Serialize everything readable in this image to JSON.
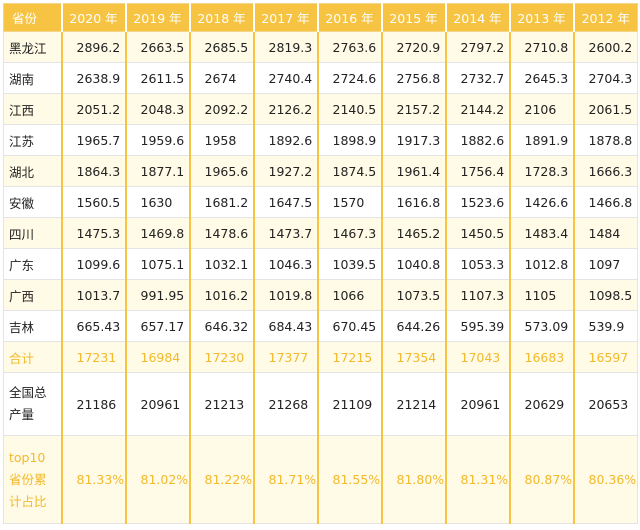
{
  "table": {
    "header_label": "省份",
    "years": [
      "2020 年",
      "2019 年",
      "2018 年",
      "2017 年",
      "2016 年",
      "2015 年",
      "2014 年",
      "2013 年",
      "2012 年"
    ],
    "rows": [
      {
        "province": "黑龙江",
        "values": [
          "2896.2",
          "2663.5",
          "2685.5",
          "2819.3",
          "2763.6",
          "2720.9",
          "2797.2",
          "2710.8",
          "2600.2"
        ]
      },
      {
        "province": "湖南",
        "values": [
          "2638.9",
          "2611.5",
          "2674",
          "2740.4",
          "2724.6",
          "2756.8",
          "2732.7",
          "2645.3",
          "2704.3"
        ]
      },
      {
        "province": "江西",
        "values": [
          "2051.2",
          "2048.3",
          "2092.2",
          "2126.2",
          "2140.5",
          "2157.2",
          "2144.2",
          "2106",
          "2061.5"
        ]
      },
      {
        "province": "江苏",
        "values": [
          "1965.7",
          "1959.6",
          "1958",
          "1892.6",
          "1898.9",
          "1917.3",
          "1882.6",
          "1891.9",
          "1878.8"
        ]
      },
      {
        "province": "湖北",
        "values": [
          "1864.3",
          "1877.1",
          "1965.6",
          "1927.2",
          "1874.5",
          "1961.4",
          "1756.4",
          "1728.3",
          "1666.3"
        ]
      },
      {
        "province": "安徽",
        "values": [
          "1560.5",
          "1630",
          "1681.2",
          "1647.5",
          "1570",
          "1616.8",
          "1523.6",
          "1426.6",
          "1466.8"
        ]
      },
      {
        "province": "四川",
        "values": [
          "1475.3",
          "1469.8",
          "1478.6",
          "1473.7",
          "1467.3",
          "1465.2",
          "1450.5",
          "1483.4",
          "1484"
        ]
      },
      {
        "province": "广东",
        "values": [
          "1099.6",
          "1075.1",
          "1032.1",
          "1046.3",
          "1039.5",
          "1040.8",
          "1053.3",
          "1012.8",
          "1097"
        ]
      },
      {
        "province": "广西",
        "values": [
          "1013.7",
          "991.95",
          "1016.2",
          "1019.8",
          "1066",
          "1073.5",
          "1107.3",
          "1105",
          "1098.5"
        ]
      },
      {
        "province": "吉林",
        "values": [
          "665.43",
          "657.17",
          "646.32",
          "684.43",
          "670.45",
          "644.26",
          "595.39",
          "573.09",
          "539.9"
        ]
      }
    ],
    "sum_row": {
      "label": "合计",
      "values": [
        "17231",
        "16984",
        "17230",
        "17377",
        "17215",
        "17354",
        "17043",
        "16683",
        "16597"
      ]
    },
    "national_row": {
      "label_lines": [
        "全国总",
        "产量"
      ],
      "values": [
        "21186",
        "20961",
        "21213",
        "21268",
        "21109",
        "21214",
        "20961",
        "20629",
        "20653"
      ]
    },
    "share_row": {
      "label_lines": [
        "top10",
        "省份累",
        "计占比"
      ],
      "values": [
        "81.33%",
        "81.02%",
        "81.22%",
        "81.71%",
        "81.55%",
        "81.80%",
        "81.31%",
        "80.87%",
        "80.36%"
      ]
    }
  },
  "colors": {
    "header_bg": "#f6c442",
    "accent_text": "#f2b92c",
    "stripe_bg": "#fffbe6"
  }
}
